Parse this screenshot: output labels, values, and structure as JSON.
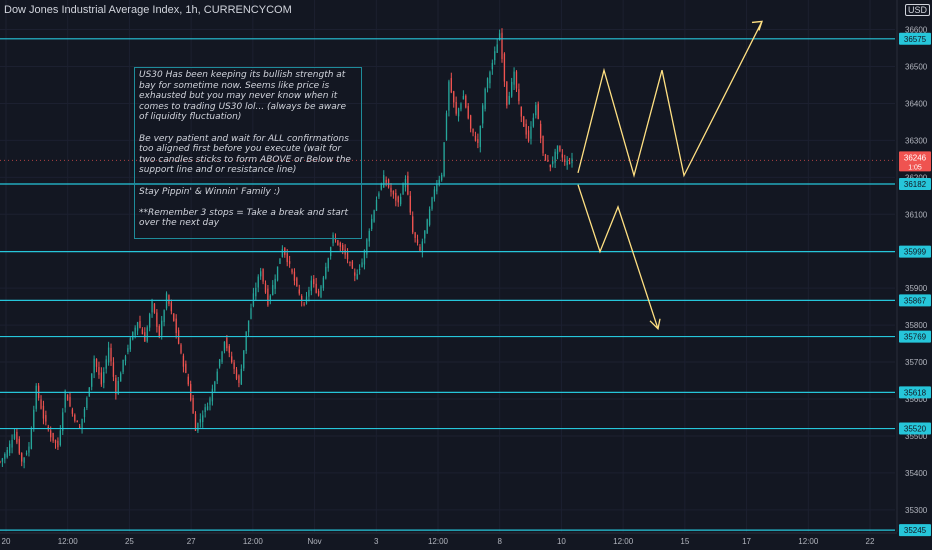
{
  "header": {
    "title": "Dow Jones Industrial Average Index, 1h, CURRENCYCOM",
    "currency": "USD"
  },
  "note": {
    "paragraphs": [
      "US30 Has been keeping its bullish strength at bay for sometime now. Seems like price is exhausted but you may never know when it comes to trading US30 lol... (always be aware of liquidity fluctuation)",
      "Be very patient and wait for ALL confirmations too aligned first before you execute (wait for two candles sticks to form ABOVE or Below the support line and or resistance line)",
      "Stay Pippin' & Winnin' Family :)",
      "**Remember 3 stops = Take a break and start over the next day"
    ]
  },
  "price_badge": {
    "price": "36246",
    "countdown": "1:05",
    "color": "#ef5350"
  },
  "colors": {
    "up": "#26a69a",
    "down": "#ef5350",
    "level": "#26c6da",
    "projection": "#ffe082",
    "background": "#131722"
  },
  "chart_data": {
    "type": "candlestick",
    "title": "Dow Jones Industrial Average Index, 1h, CURRENCYCOM",
    "y_ticks": [
      35300,
      35400,
      35500,
      35600,
      35700,
      35800,
      35900,
      36000,
      36100,
      36200,
      36300,
      36400,
      36500,
      36600
    ],
    "x_ticks": [
      "20",
      "12:00",
      "25",
      "27",
      "12:00",
      "Nov",
      "3",
      "12:00",
      "8",
      "10",
      "12:00",
      "15",
      "17",
      "12:00",
      "22"
    ],
    "ylim": [
      35240,
      36680
    ],
    "horizontal_levels": [
      36575,
      36182,
      35999,
      35867,
      35769,
      35618,
      35520,
      35245
    ],
    "last_price": 36246,
    "close_path": [
      35430,
      35460,
      35510,
      35430,
      35470,
      35630,
      35550,
      35500,
      35470,
      35620,
      35560,
      35520,
      35600,
      35710,
      35640,
      35740,
      35620,
      35700,
      35760,
      35810,
      35760,
      35860,
      35770,
      35880,
      35810,
      35720,
      35640,
      35520,
      35560,
      35600,
      35680,
      35760,
      35700,
      35640,
      35780,
      35880,
      35950,
      35860,
      35930,
      36010,
      35960,
      35900,
      35850,
      35920,
      35880,
      35960,
      36040,
      36010,
      35980,
      35930,
      35970,
      36060,
      36140,
      36200,
      36160,
      36130,
      36200,
      36050,
      36000,
      36080,
      36170,
      36210,
      36460,
      36370,
      36420,
      36330,
      36290,
      36440,
      36510,
      36590,
      36400,
      36480,
      36360,
      36300,
      36400,
      36260,
      36230,
      36280,
      36240,
      36246
    ],
    "projection_up": [
      [
        36212,
        36490
      ],
      [
        36205,
        36490
      ],
      [
        36205,
        36622
      ]
    ],
    "projection_down": [
      [
        36180,
        36000
      ],
      [
        36120,
        35790
      ]
    ]
  }
}
